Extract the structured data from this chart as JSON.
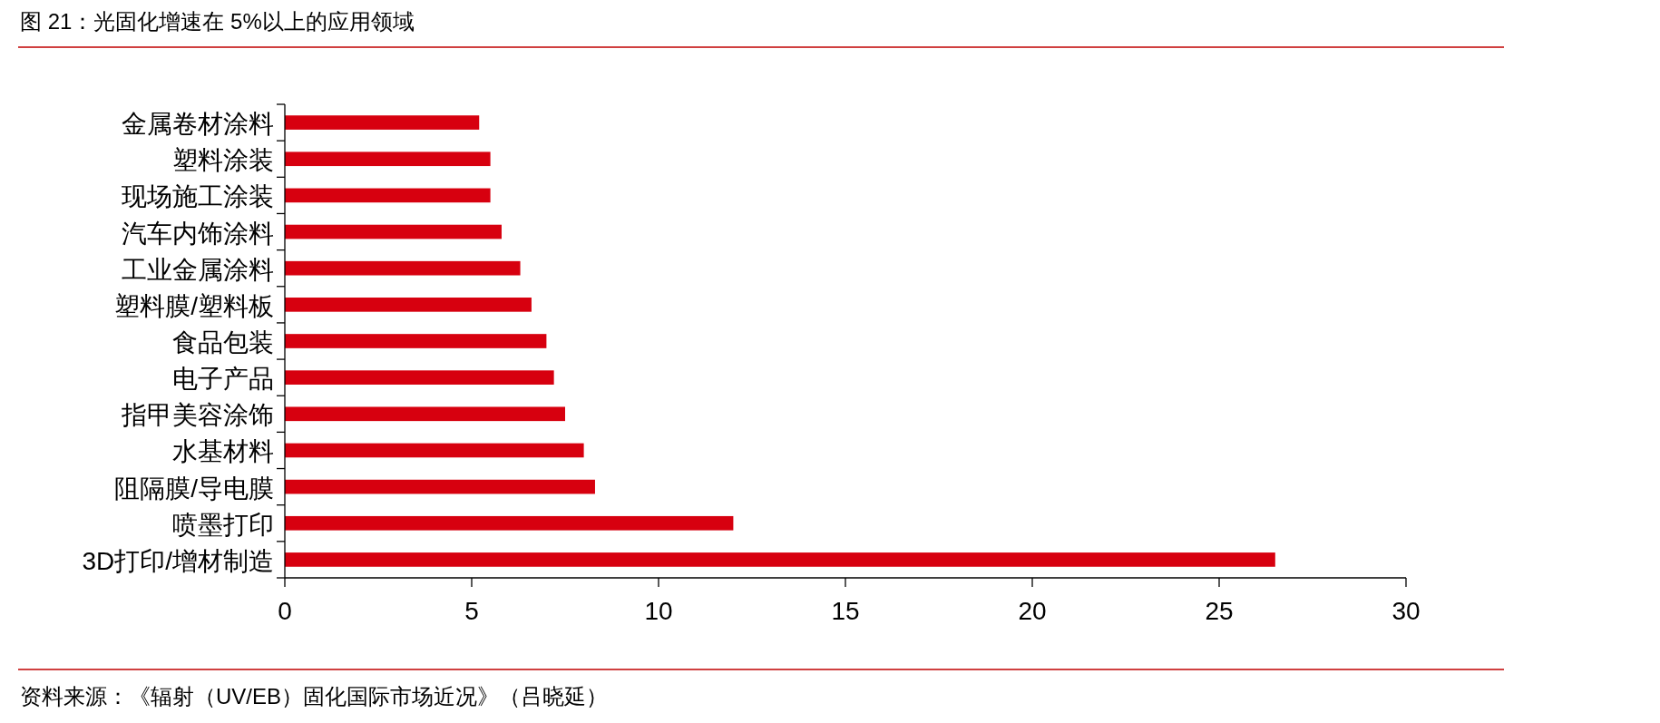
{
  "chart_data": {
    "type": "bar",
    "orientation": "horizontal",
    "title": "图 21：光固化增速在 5%以上的应用领域",
    "categories": [
      "金属卷材涂料",
      "塑料涂装",
      "现场施工涂装",
      "汽车内饰涂料",
      "工业金属涂料",
      "塑料膜/塑料板",
      "食品包装",
      "电子产品",
      "指甲美容涂饰",
      "水基材料",
      "阻隔膜/导电膜",
      "喷墨打印",
      "3D打印/增材制造"
    ],
    "values": [
      5.2,
      5.5,
      5.5,
      5.8,
      6.3,
      6.6,
      7.0,
      7.2,
      7.5,
      8.0,
      8.3,
      12,
      26.5
    ],
    "color": "#d7000f",
    "xlim": [
      0,
      30
    ],
    "xticks": [
      0,
      5,
      10,
      15,
      20,
      25,
      30
    ],
    "annotations": [
      "资料来源：《辐射（UV/EB）固化国际市场近况》（吕晓延）"
    ]
  }
}
